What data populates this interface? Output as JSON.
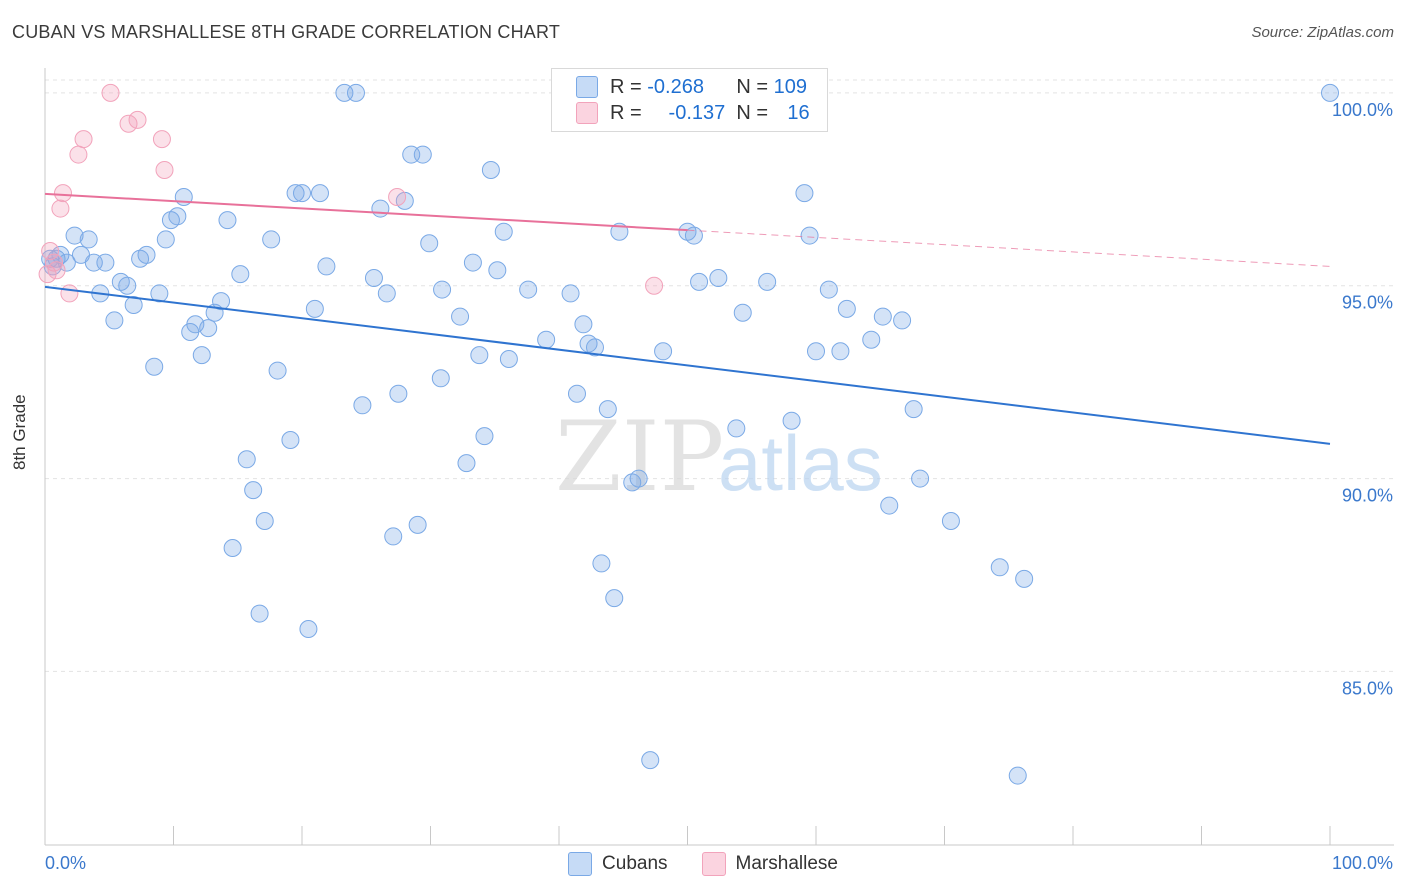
{
  "header": {
    "title": "CUBAN VS MARSHALLESE 8TH GRADE CORRELATION CHART",
    "source": "Source: ZipAtlas.com"
  },
  "legend_top": [
    {
      "r_label": "R =",
      "r_value": "-0.268",
      "n_label": "N =",
      "n_value": "109"
    },
    {
      "r_label": "R =",
      "r_value": "-0.137",
      "n_label": "N =",
      "n_value": "16"
    }
  ],
  "legend_bottom": [
    "Cubans",
    "Marshallese"
  ],
  "colors": {
    "cubans": "#7aa9e6",
    "cubans_line": "#2f74d0",
    "marshallese": "#f2a3bb",
    "marshallese_line": "#e8719a",
    "axis_text": "#3a78cc",
    "grid": "#e3e3e3"
  },
  "watermark": {
    "zip": "ZIP",
    "atlas": "atlas"
  },
  "chart_data": {
    "type": "scatter",
    "xlabel": "",
    "ylabel": "8th Grade",
    "xlim": [
      0,
      100
    ],
    "ylim": [
      80.5,
      100.8
    ],
    "x_tick_labels": [
      "0.0%",
      "100.0%"
    ],
    "y_ticks": [
      85,
      90,
      95,
      100
    ],
    "y_tick_labels": [
      "85.0%",
      "90.0%",
      "95.0%",
      "100.0%"
    ],
    "grid": true,
    "series": [
      {
        "name": "Cubans",
        "points": [
          [
            0.4,
            95.7
          ],
          [
            0.6,
            95.5
          ],
          [
            0.9,
            95.7
          ],
          [
            1.2,
            95.8
          ],
          [
            1.7,
            95.6
          ],
          [
            2.3,
            96.3
          ],
          [
            2.8,
            95.8
          ],
          [
            3.4,
            96.2
          ],
          [
            3.8,
            95.6
          ],
          [
            4.3,
            94.8
          ],
          [
            4.7,
            95.6
          ],
          [
            5.4,
            94.1
          ],
          [
            5.9,
            95.1
          ],
          [
            6.4,
            95.0
          ],
          [
            6.9,
            94.5
          ],
          [
            7.4,
            95.7
          ],
          [
            7.9,
            95.8
          ],
          [
            8.5,
            92.9
          ],
          [
            8.9,
            94.8
          ],
          [
            9.4,
            96.2
          ],
          [
            9.8,
            96.7
          ],
          [
            10.3,
            96.8
          ],
          [
            10.8,
            97.3
          ],
          [
            11.3,
            93.8
          ],
          [
            11.7,
            94.0
          ],
          [
            12.2,
            93.2
          ],
          [
            12.7,
            93.9
          ],
          [
            13.2,
            94.3
          ],
          [
            13.7,
            94.6
          ],
          [
            14.2,
            96.7
          ],
          [
            14.6,
            88.2
          ],
          [
            15.2,
            95.3
          ],
          [
            15.7,
            90.5
          ],
          [
            16.2,
            89.7
          ],
          [
            16.7,
            86.5
          ],
          [
            17.1,
            88.9
          ],
          [
            17.6,
            96.2
          ],
          [
            18.1,
            92.8
          ],
          [
            19.1,
            91.0
          ],
          [
            19.5,
            97.4
          ],
          [
            20.0,
            97.4
          ],
          [
            20.5,
            86.1
          ],
          [
            21.0,
            94.4
          ],
          [
            21.4,
            97.4
          ],
          [
            21.9,
            95.5
          ],
          [
            23.3,
            100.0
          ],
          [
            24.2,
            100.0
          ],
          [
            24.7,
            91.9
          ],
          [
            25.6,
            95.2
          ],
          [
            26.1,
            97.0
          ],
          [
            26.6,
            94.8
          ],
          [
            27.1,
            88.5
          ],
          [
            27.5,
            92.2
          ],
          [
            28.0,
            97.2
          ],
          [
            28.5,
            98.4
          ],
          [
            29.0,
            88.8
          ],
          [
            29.4,
            98.4
          ],
          [
            29.9,
            96.1
          ],
          [
            30.8,
            92.6
          ],
          [
            30.9,
            94.9
          ],
          [
            32.3,
            94.2
          ],
          [
            32.8,
            90.4
          ],
          [
            33.3,
            95.6
          ],
          [
            33.8,
            93.2
          ],
          [
            34.2,
            91.1
          ],
          [
            34.7,
            98.0
          ],
          [
            35.2,
            95.4
          ],
          [
            35.7,
            96.4
          ],
          [
            36.1,
            93.1
          ],
          [
            37.6,
            94.9
          ],
          [
            39.0,
            93.6
          ],
          [
            40.9,
            94.8
          ],
          [
            41.4,
            92.2
          ],
          [
            41.9,
            94.0
          ],
          [
            42.3,
            93.5
          ],
          [
            42.8,
            93.4
          ],
          [
            43.3,
            87.8
          ],
          [
            43.8,
            91.8
          ],
          [
            44.3,
            86.9
          ],
          [
            44.7,
            96.4
          ],
          [
            45.7,
            89.9
          ],
          [
            46.2,
            90.0
          ],
          [
            47.1,
            82.7
          ],
          [
            48.1,
            93.3
          ],
          [
            50.0,
            96.4
          ],
          [
            50.5,
            96.3
          ],
          [
            50.9,
            95.1
          ],
          [
            52.4,
            95.2
          ],
          [
            53.8,
            91.3
          ],
          [
            54.3,
            94.3
          ],
          [
            56.2,
            95.1
          ],
          [
            58.1,
            91.5
          ],
          [
            59.1,
            97.4
          ],
          [
            59.5,
            96.3
          ],
          [
            60.0,
            93.3
          ],
          [
            61.0,
            94.9
          ],
          [
            61.9,
            93.3
          ],
          [
            62.4,
            94.4
          ],
          [
            64.3,
            93.6
          ],
          [
            65.2,
            94.2
          ],
          [
            65.7,
            89.3
          ],
          [
            66.7,
            94.1
          ],
          [
            67.6,
            91.8
          ],
          [
            68.1,
            90.0
          ],
          [
            70.5,
            88.9
          ],
          [
            74.3,
            87.7
          ],
          [
            75.7,
            82.3
          ],
          [
            76.2,
            87.4
          ],
          [
            100.0,
            100.0
          ]
        ],
        "trend": {
          "x": [
            0,
            100
          ],
          "y": [
            94.97,
            90.9
          ]
        }
      },
      {
        "name": "Marshallese",
        "points": [
          [
            0.2,
            95.3
          ],
          [
            0.4,
            95.9
          ],
          [
            0.7,
            95.6
          ],
          [
            0.9,
            95.4
          ],
          [
            1.2,
            97.0
          ],
          [
            1.4,
            97.4
          ],
          [
            1.9,
            94.8
          ],
          [
            2.6,
            98.4
          ],
          [
            3.0,
            98.8
          ],
          [
            5.1,
            100.0
          ],
          [
            6.5,
            99.2
          ],
          [
            7.2,
            99.3
          ],
          [
            9.1,
            98.8
          ],
          [
            9.3,
            98.0
          ],
          [
            27.4,
            97.3
          ],
          [
            47.4,
            95.0
          ]
        ],
        "trend": {
          "x": [
            0,
            100
          ],
          "y": [
            97.38,
            95.5
          ],
          "solid_until": 50
        }
      }
    ]
  }
}
